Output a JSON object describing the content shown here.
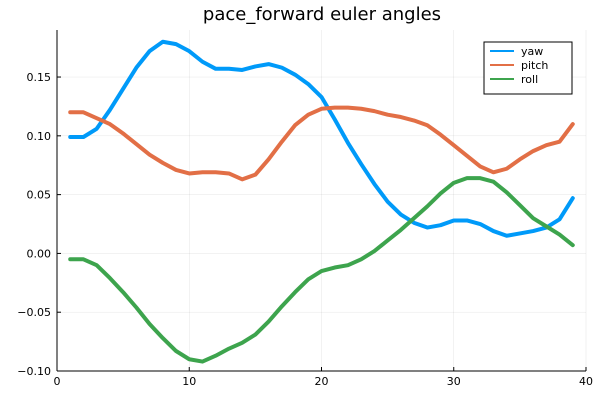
{
  "chart_data": {
    "type": "line",
    "title": "pace_forward euler angles",
    "xlabel": "",
    "ylabel": "",
    "xlim": [
      0,
      40
    ],
    "ylim": [
      -0.1,
      0.19
    ],
    "xticks": [
      0,
      10,
      20,
      30,
      40
    ],
    "xtick_labels": [
      "0",
      "10",
      "20",
      "30",
      "40"
    ],
    "yticks": [
      -0.1,
      -0.05,
      0.0,
      0.05,
      0.1,
      0.15
    ],
    "ytick_labels": [
      "−0.10",
      "−0.05",
      "0.00",
      "0.05",
      "0.10",
      "0.15"
    ],
    "grid": true,
    "legend_position": "top-right",
    "x": [
      1,
      2,
      3,
      4,
      5,
      6,
      7,
      8,
      9,
      10,
      11,
      12,
      13,
      14,
      15,
      16,
      17,
      18,
      19,
      20,
      21,
      22,
      23,
      24,
      25,
      26,
      27,
      28,
      29,
      30,
      31,
      32,
      33,
      34,
      35,
      36,
      37,
      38,
      39
    ],
    "series": [
      {
        "name": "yaw",
        "color": "#009AF9",
        "values": [
          0.099,
          0.099,
          0.106,
          0.122,
          0.14,
          0.158,
          0.172,
          0.18,
          0.178,
          0.172,
          0.163,
          0.157,
          0.157,
          0.156,
          0.159,
          0.161,
          0.158,
          0.152,
          0.144,
          0.133,
          0.114,
          0.094,
          0.076,
          0.059,
          0.044,
          0.033,
          0.026,
          0.022,
          0.024,
          0.028,
          0.028,
          0.025,
          0.019,
          0.015,
          0.017,
          0.019,
          0.022,
          0.029,
          0.047
        ]
      },
      {
        "name": "pitch",
        "color": "#E26F46",
        "values": [
          0.12,
          0.12,
          0.115,
          0.11,
          0.102,
          0.093,
          0.084,
          0.077,
          0.071,
          0.068,
          0.069,
          0.069,
          0.068,
          0.063,
          0.067,
          0.08,
          0.095,
          0.109,
          0.118,
          0.123,
          0.124,
          0.124,
          0.123,
          0.121,
          0.118,
          0.116,
          0.113,
          0.109,
          0.101,
          0.092,
          0.083,
          0.074,
          0.069,
          0.072,
          0.08,
          0.087,
          0.092,
          0.095,
          0.11
        ]
      },
      {
        "name": "roll",
        "color": "#3DA44D",
        "values": [
          -0.005,
          -0.005,
          -0.01,
          -0.021,
          -0.033,
          -0.046,
          -0.06,
          -0.072,
          -0.083,
          -0.09,
          -0.092,
          -0.087,
          -0.081,
          -0.076,
          -0.069,
          -0.058,
          -0.045,
          -0.033,
          -0.022,
          -0.015,
          -0.012,
          -0.01,
          -0.005,
          0.002,
          0.011,
          0.02,
          0.03,
          0.04,
          0.051,
          0.06,
          0.064,
          0.064,
          0.061,
          0.052,
          0.041,
          0.03,
          0.023,
          0.016,
          0.007
        ]
      }
    ]
  }
}
